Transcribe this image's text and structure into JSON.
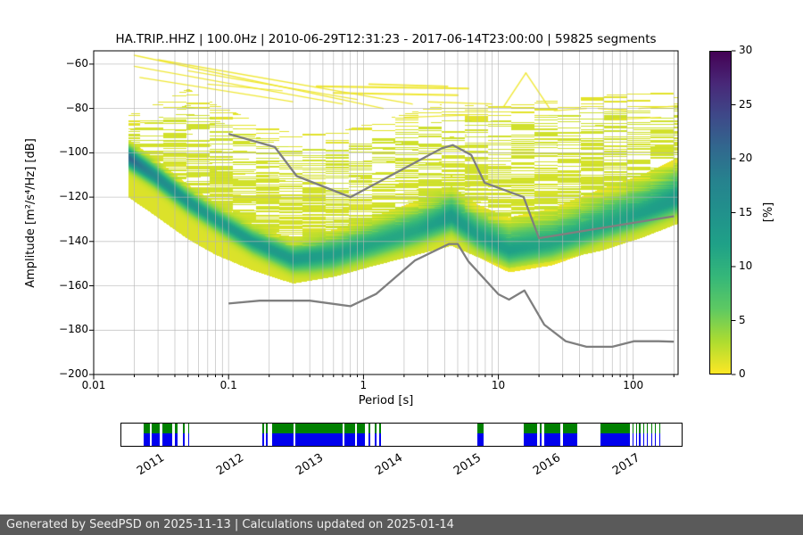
{
  "chart_data": {
    "type": "heatmap",
    "title": "HA.TRIP..HHZ | 100.0Hz | 2010-06-29T12:31:23 - 2017-06-14T23:00:00 | 59825 segments",
    "xlabel": "Period [s]",
    "ylabel": "Amplitude [m²/s⁴/Hz] [dB]",
    "x_scale": "log",
    "xlim": [
      0.01,
      215
    ],
    "ylim": [
      -200,
      -54
    ],
    "xticks": [
      0.01,
      0.1,
      1,
      10,
      100
    ],
    "yticks": [
      -200,
      -180,
      -160,
      -140,
      -120,
      -100,
      -80,
      -60
    ],
    "grid": true,
    "colorbar": {
      "label": "[%]",
      "min": 0,
      "max": 30,
      "ticks": [
        0,
        5,
        10,
        15,
        20,
        25,
        30
      ],
      "colormap": "viridis_r",
      "viridis_stops": [
        "#440154",
        "#482878",
        "#3e4989",
        "#31688e",
        "#26828e",
        "#21918c",
        "#1fa187",
        "#35b779",
        "#5ec962",
        "#addc30",
        "#fde725"
      ]
    },
    "ppsd_cloud": {
      "description": "Probability density cloud: ridge = most probable PSD amplitude (dB) vs period (s), strength = peak probability %",
      "keypoints": [
        {
          "period": 0.018,
          "top": -90,
          "bottom": -120,
          "ridge": -102,
          "strength": 20,
          "sigma": 3
        },
        {
          "period": 0.028,
          "top": -85,
          "bottom": -128,
          "ridge": -110,
          "strength": 15,
          "sigma": 3
        },
        {
          "period": 0.05,
          "top": -78,
          "bottom": -139,
          "ridge": -122,
          "strength": 13,
          "sigma": 3
        },
        {
          "period": 0.08,
          "top": -85,
          "bottom": -146,
          "ridge": -130,
          "strength": 12,
          "sigma": 3
        },
        {
          "period": 0.15,
          "top": -92,
          "bottom": -153,
          "ridge": -140,
          "strength": 12,
          "sigma": 3.2
        },
        {
          "period": 0.3,
          "top": -98,
          "bottom": -159,
          "ridge": -148,
          "strength": 12,
          "sigma": 3.5
        },
        {
          "period": 0.6,
          "top": -98,
          "bottom": -156,
          "ridge": -146,
          "strength": 11,
          "sigma": 4.5
        },
        {
          "period": 1.2,
          "top": -93,
          "bottom": -151,
          "ridge": -141,
          "strength": 10,
          "sigma": 5
        },
        {
          "period": 2.5,
          "top": -88,
          "bottom": -146,
          "ridge": -135,
          "strength": 10,
          "sigma": 5.5
        },
        {
          "period": 4.5,
          "top": -84,
          "bottom": -142,
          "ridge": -129,
          "strength": 12,
          "sigma": 5.5
        },
        {
          "period": 7,
          "top": -86,
          "bottom": -147,
          "ridge": -137,
          "strength": 11,
          "sigma": 5.5
        },
        {
          "period": 12,
          "top": -85,
          "bottom": -152,
          "ridge": -144,
          "strength": 11,
          "sigma": 6
        },
        {
          "period": 25,
          "top": -83,
          "bottom": -149,
          "ridge": -141,
          "strength": 10,
          "sigma": 6.5
        },
        {
          "period": 60,
          "top": -81,
          "bottom": -144,
          "ridge": -133,
          "strength": 10,
          "sigma": 7
        },
        {
          "period": 120,
          "top": -80,
          "bottom": -138,
          "ridge": -127,
          "strength": 11,
          "sigma": 7
        },
        {
          "period": 215,
          "top": -79,
          "bottom": -132,
          "ridge": -121,
          "strength": 12,
          "sigma": 7.5
        }
      ]
    },
    "streaks": [
      [
        0.02,
        -56,
        1.4,
        -80,
        1.4
      ],
      [
        0.02,
        -61,
        0.7,
        -78,
        1.3
      ],
      [
        0.022,
        -66,
        0.3,
        -77,
        1.3
      ],
      [
        0.03,
        -58,
        2.3,
        -78,
        1.4
      ],
      [
        0.05,
        -63,
        0.9,
        -76,
        1.2
      ],
      [
        0.07,
        -69,
        0.25,
        -72,
        1.2
      ],
      [
        0.45,
        -70,
        6.0,
        -71,
        2.2
      ],
      [
        0.6,
        -73,
        5.0,
        -74,
        2.0
      ],
      [
        1.1,
        -69,
        4.2,
        -70,
        1.8
      ],
      [
        2.0,
        -84,
        6.0,
        -83,
        1.4
      ],
      [
        3.0,
        -77,
        9.0,
        -78,
        1.4
      ],
      [
        11,
        -79,
        16,
        -64,
        1.4
      ],
      [
        16,
        -64,
        24,
        -80,
        1.4
      ],
      [
        26,
        -81,
        45,
        -80,
        1.2
      ],
      [
        55,
        -80,
        90,
        -81,
        1.2
      ],
      [
        110,
        -80,
        200,
        -79,
        1.3
      ],
      [
        70,
        -85,
        160,
        -84,
        1.2
      ]
    ],
    "noise_models": {
      "color": "#7f7f7f",
      "high_model": [
        [
          0.1,
          -91.5
        ],
        [
          0.22,
          -97.4
        ],
        [
          0.32,
          -110.5
        ],
        [
          0.8,
          -120.0
        ],
        [
          3.8,
          -98.0
        ],
        [
          4.6,
          -96.5
        ],
        [
          6.3,
          -101.0
        ],
        [
          7.9,
          -113.5
        ],
        [
          15.4,
          -120.0
        ],
        [
          20.0,
          -138.5
        ],
        [
          200.0,
          -128.6
        ]
      ],
      "low_model": [
        [
          0.1,
          -168.0
        ],
        [
          0.17,
          -166.7
        ],
        [
          0.4,
          -166.7
        ],
        [
          0.8,
          -169.2
        ],
        [
          1.24,
          -163.7
        ],
        [
          2.4,
          -148.6
        ],
        [
          4.3,
          -141.1
        ],
        [
          5.0,
          -141.1
        ],
        [
          6.0,
          -149.0
        ],
        [
          10.0,
          -163.8
        ],
        [
          12.0,
          -166.2
        ],
        [
          15.6,
          -162.1
        ],
        [
          21.9,
          -177.5
        ],
        [
          31.6,
          -185.0
        ],
        [
          45.0,
          -187.5
        ],
        [
          70.0,
          -187.5
        ],
        [
          101.0,
          -185.0
        ],
        [
          154.0,
          -185.0
        ],
        [
          200.0,
          -185.2
        ]
      ]
    }
  },
  "timeline": {
    "start": 2010.5,
    "end": 2017.6,
    "years": [
      "2011",
      "2012",
      "2013",
      "2014",
      "2015",
      "2016",
      "2017"
    ],
    "segment_colors": {
      "top": "#008000",
      "bottom": "#0000ee"
    },
    "green_fraction": 0.45,
    "segments": [
      [
        2010.78,
        2010.86
      ],
      [
        2010.88,
        2010.98
      ],
      [
        2011.02,
        2011.14
      ],
      [
        2011.18,
        2011.21
      ],
      [
        2011.28,
        2011.3
      ],
      [
        2011.34,
        2011.36
      ],
      [
        2012.28,
        2012.3
      ],
      [
        2012.33,
        2012.35
      ],
      [
        2012.4,
        2012.68
      ],
      [
        2012.7,
        2013.3
      ],
      [
        2013.32,
        2013.45
      ],
      [
        2013.48,
        2013.58
      ],
      [
        2013.62,
        2013.64
      ],
      [
        2013.7,
        2013.72
      ],
      [
        2013.76,
        2013.78
      ],
      [
        2015.0,
        2015.08
      ],
      [
        2015.58,
        2015.75
      ],
      [
        2015.78,
        2015.81
      ],
      [
        2015.84,
        2016.05
      ],
      [
        2016.08,
        2016.26
      ],
      [
        2016.55,
        2016.93
      ],
      [
        2016.96,
        2016.975
      ],
      [
        2017.0,
        2017.015
      ],
      [
        2017.04,
        2017.055
      ],
      [
        2017.09,
        2017.105
      ],
      [
        2017.14,
        2017.155
      ],
      [
        2017.19,
        2017.205
      ],
      [
        2017.24,
        2017.255
      ],
      [
        2017.29,
        2017.305
      ]
    ]
  },
  "footer": {
    "text": "Generated by SeedPSD on 2025-11-13 | Calculations updated on 2025-01-14"
  }
}
